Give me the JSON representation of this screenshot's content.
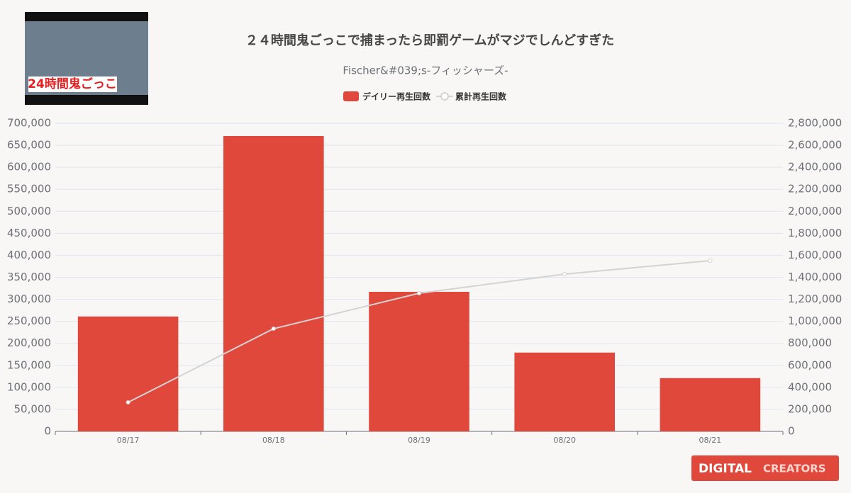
{
  "thumbnail": {
    "caption": "24時間鬼ごっこ"
  },
  "logo": {
    "mark": "DIGITAL",
    "text": "CREATORS"
  },
  "chart_data": {
    "type": "bar",
    "title": "２４時間鬼ごっこで捕まったら即罰ゲームがマジでしんどすぎた",
    "subtitle": "Fischer&#039;s-フィッシャーズ-",
    "categories": [
      "08/17",
      "08/18",
      "08/19",
      "08/20",
      "08/21"
    ],
    "series": [
      {
        "name": "デイリー再生回数",
        "color": "#e0483c",
        "type": "bar",
        "values": [
          261000,
          671000,
          317000,
          179000,
          121000
        ]
      },
      {
        "name": "累計再生回数",
        "color": "#d3d3d3",
        "type": "line",
        "axis": "y2",
        "values": [
          264000,
          933000,
          1255000,
          1429000,
          1551000
        ]
      }
    ],
    "ylim": [
      0,
      700000
    ],
    "yticks": [
      0,
      {
        "value": 50000,
        "label": "50,000"
      },
      {
        "value": 100000,
        "label": "100,000"
      },
      {
        "value": 150000,
        "label": "150,000"
      },
      {
        "value": 200000,
        "label": "200,000"
      },
      {
        "value": 250000,
        "label": "250,000"
      },
      {
        "value": 300000,
        "label": "300,000"
      },
      {
        "value": 350000,
        "label": "350,000"
      },
      {
        "value": 400000,
        "label": "400,000"
      },
      {
        "value": 450000,
        "label": "450,000"
      },
      {
        "value": 500000,
        "label": "500,000"
      },
      {
        "value": 550000,
        "label": "550,000"
      },
      {
        "value": 600000,
        "label": "600,000"
      },
      {
        "value": 650000,
        "label": "650,000"
      },
      {
        "value": 700000,
        "label": "700,000"
      }
    ],
    "y2lim": [
      0,
      2800000
    ],
    "y2ticks": [
      0,
      {
        "value": 200000,
        "label": "200,000"
      },
      {
        "value": 400000,
        "label": "400,000"
      },
      {
        "value": 600000,
        "label": "600,000"
      },
      {
        "value": 800000,
        "label": "800,000"
      },
      {
        "value": 1000000,
        "label": "1,000,000"
      },
      {
        "value": 1200000,
        "label": "1,200,000"
      },
      {
        "value": 1400000,
        "label": "1,400,000"
      },
      {
        "value": 1600000,
        "label": "1,600,000"
      },
      {
        "value": 1800000,
        "label": "1,800,000"
      },
      {
        "value": 2000000,
        "label": "2,000,000"
      },
      {
        "value": 2200000,
        "label": "2,200,000"
      },
      {
        "value": 2400000,
        "label": "2,400,000"
      },
      {
        "value": 2600000,
        "label": "2,600,000"
      },
      {
        "value": 2800000,
        "label": "2,800,000"
      }
    ],
    "grid": true
  }
}
